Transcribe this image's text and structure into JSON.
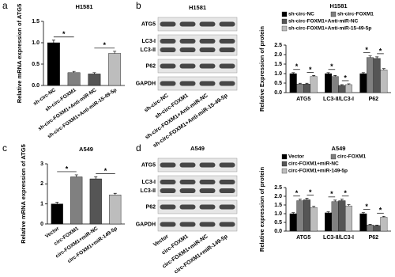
{
  "panels": [
    "a",
    "b",
    "c",
    "d"
  ],
  "blots": [
    {
      "title": "H1581",
      "bands": [
        "ATG5",
        "LC3-I",
        "LC3-II",
        "P62",
        "GAPDH"
      ],
      "lanes": [
        "sh-circ-NC",
        "sh-circ-FOXM1",
        "sh-circ-FOXM1+Anti-miR-NC",
        "sh-circ-FOXM1+Anti-miR-15-49-5p"
      ]
    },
    {
      "title": "A549",
      "bands": [
        "ATG5",
        "LC3-I",
        "LC3-II",
        "P62",
        "GAPDH"
      ],
      "lanes": [
        "Vector",
        "circ-FOXM1",
        "circ-FOXM1+miR-NC",
        "circ-FOXM1+miR-149-5p"
      ]
    }
  ],
  "chart_data": [
    {
      "type": "bar",
      "title": "H1581",
      "ylabel": "Relative mRNA expression of ATG5",
      "categories": [
        "sh-circ-NC",
        "sh-circ-FOXM1",
        "sh-circ-FOXM1+Anti-miR-NC",
        "sh-circ-FOXM1+Anti-miR-15-49-5p"
      ],
      "values": [
        1.0,
        0.3,
        0.27,
        0.75
      ],
      "errors": [
        0.06,
        0.03,
        0.03,
        0.05
      ],
      "colors": [
        "#000000",
        "#808080",
        "#555555",
        "#bdbdbd"
      ],
      "ylim": [
        0,
        1.5
      ],
      "yticks": [
        {
          "value": 0,
          "label": "0.0"
        },
        {
          "value": 0.5,
          "label": "0.5"
        },
        {
          "value": 1,
          "label": "1.0"
        },
        {
          "value": 1.5,
          "label": "1.5"
        }
      ],
      "annotations": [
        {
          "text": "*",
          "pair": [
            0,
            1
          ]
        },
        {
          "text": "*",
          "pair": [
            2,
            3
          ]
        }
      ]
    },
    {
      "type": "grouped_bar",
      "title": "H1581",
      "ylabel": "Relative Expression of protein",
      "categories": [
        "ATG5",
        "LC3-II/LC3-I",
        "P62"
      ],
      "series": [
        {
          "name": "sh-circ-NC",
          "color": "#000000",
          "values": [
            1.0,
            1.0,
            1.0
          ],
          "errors": [
            0.05,
            0.05,
            0.05
          ]
        },
        {
          "name": "sh-circ-FOXM1",
          "color": "#808080",
          "values": [
            0.45,
            0.85,
            1.85
          ],
          "errors": [
            0.04,
            0.05,
            0.08
          ]
        },
        {
          "name": "sh-circ-FOXM1+Anti-miR-NC",
          "color": "#555555",
          "values": [
            0.45,
            0.38,
            1.8
          ],
          "errors": [
            0.04,
            0.04,
            0.08
          ]
        },
        {
          "name": "sh-circ-FOXM1+Anti-miR-15-49-5p",
          "color": "#bdbdbd",
          "values": [
            0.85,
            0.42,
            1.2
          ],
          "errors": [
            0.05,
            0.04,
            0.06
          ]
        }
      ],
      "ylim": [
        0,
        2.5
      ],
      "yticks": [
        {
          "value": 0,
          "label": "0.0"
        },
        {
          "value": 0.5,
          "label": "0.5"
        },
        {
          "value": 1,
          "label": "1.0"
        },
        {
          "value": 1.5,
          "label": "1.5"
        },
        {
          "value": 2,
          "label": "2.0"
        },
        {
          "value": 2.5,
          "label": "2.5"
        }
      ],
      "annotations": [
        {
          "text": "*",
          "category": 0,
          "pair": [
            0,
            1
          ]
        },
        {
          "text": "*",
          "category": 0,
          "pair": [
            2,
            3
          ]
        },
        {
          "text": "*",
          "category": 1,
          "pair": [
            0,
            1
          ]
        },
        {
          "text": "*",
          "category": 1,
          "pair": [
            2,
            3
          ]
        },
        {
          "text": "*",
          "category": 2,
          "pair": [
            0,
            1
          ]
        },
        {
          "text": "*",
          "category": 2,
          "pair": [
            2,
            3
          ]
        }
      ]
    },
    {
      "type": "bar",
      "title": "A549",
      "ylabel": "Relative mRNA expression of ATG5",
      "categories": [
        "Vector",
        "circ-FOXM1",
        "circ-FOXM1+miR-NC",
        "circ-FOXM1+miR-149-5p"
      ],
      "values": [
        1.0,
        2.35,
        2.25,
        1.45
      ],
      "errors": [
        0.08,
        0.1,
        0.1,
        0.08
      ],
      "colors": [
        "#000000",
        "#808080",
        "#555555",
        "#bdbdbd"
      ],
      "ylim": [
        0,
        3
      ],
      "yticks": [
        0,
        1,
        2,
        3
      ],
      "annotations": [
        {
          "text": "*",
          "pair": [
            0,
            1
          ]
        },
        {
          "text": "*",
          "pair": [
            2,
            3
          ]
        }
      ]
    },
    {
      "type": "grouped_bar",
      "title": "A549",
      "ylabel": "Relative expression of protein",
      "categories": [
        "ATG5",
        "LC3-II/LC3-I",
        "P62"
      ],
      "series": [
        {
          "name": "Vector",
          "color": "#000000",
          "values": [
            1.0,
            1.05,
            1.0
          ],
          "errors": [
            0.06,
            0.06,
            0.06
          ]
        },
        {
          "name": "circ-FOXM1",
          "color": "#808080",
          "values": [
            1.75,
            1.7,
            0.35
          ],
          "errors": [
            0.08,
            0.08,
            0.03
          ]
        },
        {
          "name": "circ-FOXM1+miR-NC",
          "color": "#555555",
          "values": [
            1.8,
            1.75,
            0.32
          ],
          "errors": [
            0.08,
            0.08,
            0.03
          ]
        },
        {
          "name": "circ-FOXM1+miR-149-5p",
          "color": "#bdbdbd",
          "values": [
            1.35,
            1.45,
            0.8
          ],
          "errors": [
            0.07,
            0.07,
            0.05
          ]
        }
      ],
      "ylim": [
        0,
        2.5
      ],
      "yticks": [
        {
          "value": 0,
          "label": "0.0"
        },
        {
          "value": 0.5,
          "label": "0.5"
        },
        {
          "value": 1,
          "label": "1.0"
        },
        {
          "value": 1.5,
          "label": "1.5"
        },
        {
          "value": 2,
          "label": "2.0"
        },
        {
          "value": 2.5,
          "label": "2.5"
        }
      ],
      "annotations": [
        {
          "text": "*",
          "category": 0,
          "pair": [
            0,
            1
          ]
        },
        {
          "text": "*",
          "category": 0,
          "pair": [
            2,
            3
          ]
        },
        {
          "text": "*",
          "category": 1,
          "pair": [
            0,
            1
          ]
        },
        {
          "text": "*",
          "category": 1,
          "pair": [
            2,
            3
          ]
        },
        {
          "text": "*",
          "category": 2,
          "pair": [
            0,
            1
          ]
        },
        {
          "text": "*",
          "category": 2,
          "pair": [
            2,
            3
          ]
        }
      ]
    }
  ]
}
